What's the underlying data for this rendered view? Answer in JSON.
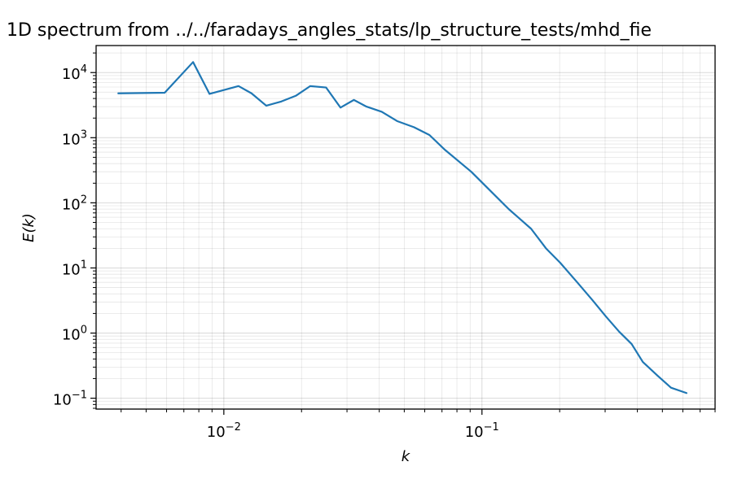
{
  "chart_data": {
    "type": "line",
    "title": "1D spectrum from ../../faradays_angles_stats/lp_structure_tests/mhd_fie",
    "xlabel": "k",
    "ylabel": "E(k)",
    "xscale": "log",
    "yscale": "log",
    "xlim": [
      0.0032,
      0.8
    ],
    "ylim": [
      0.068,
      26000
    ],
    "grid": "on (major and minor)",
    "x_ticks": [
      {
        "base": "10",
        "exp": "−2",
        "value": 0.01
      },
      {
        "base": "10",
        "exp": "−1",
        "value": 0.1
      }
    ],
    "y_ticks": [
      {
        "base": "10",
        "exp": "−1",
        "value": 0.1
      },
      {
        "base": "10",
        "exp": "0",
        "value": 1
      },
      {
        "base": "10",
        "exp": "1",
        "value": 10
      },
      {
        "base": "10",
        "exp": "2",
        "value": 100
      },
      {
        "base": "10",
        "exp": "3",
        "value": 1000
      },
      {
        "base": "10",
        "exp": "4",
        "value": 10000
      }
    ],
    "line_color": "#1f77b4",
    "series": [
      {
        "x": [
          0.0039,
          0.0059,
          0.0076,
          0.0088,
          0.0114,
          0.0128,
          0.0146,
          0.0167,
          0.019,
          0.0216,
          0.0249,
          0.0283,
          0.0319,
          0.0357,
          0.0409,
          0.0469,
          0.0545,
          0.0626,
          0.0719,
          0.0909,
          0.127,
          0.155,
          0.177,
          0.201,
          0.234,
          0.268,
          0.302,
          0.34,
          0.38,
          0.42,
          0.48,
          0.54,
          0.62
        ],
        "y": [
          4800,
          4900,
          14500,
          4700,
          6200,
          4800,
          3100,
          3600,
          4400,
          6200,
          5900,
          2900,
          3800,
          3000,
          2500,
          1800,
          1450,
          1100,
          650,
          300,
          80,
          40,
          20,
          12,
          6,
          3.2,
          1.8,
          1.05,
          0.68,
          0.36,
          0.22,
          0.145,
          0.12
        ]
      }
    ]
  }
}
